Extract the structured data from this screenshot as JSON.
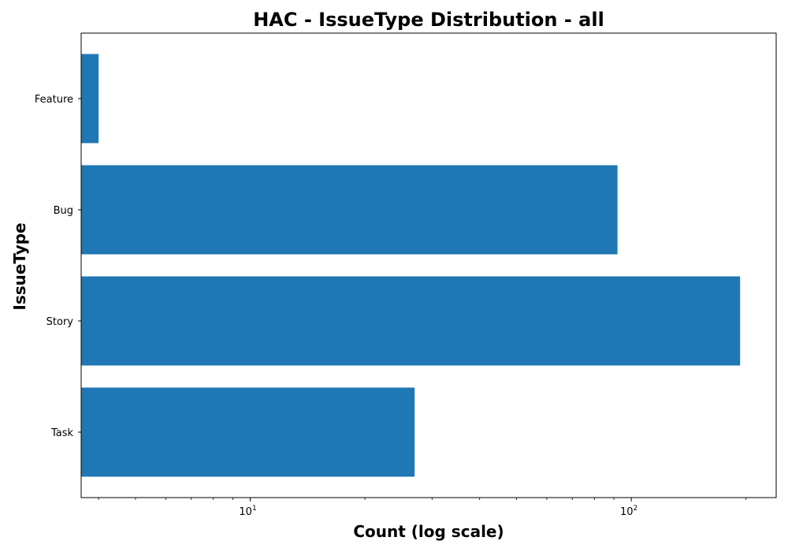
{
  "chart_data": {
    "type": "bar",
    "orientation": "horizontal",
    "title": "HAC - IssueType Distribution - all",
    "xlabel": "Count (log scale)",
    "ylabel": "IssueType",
    "x_scale": "log",
    "xlim": [
      3.6,
      240
    ],
    "x_ticks": [
      {
        "base": "10",
        "exp": "1",
        "value": 10
      },
      {
        "base": "10",
        "exp": "2",
        "value": 100
      }
    ],
    "categories": [
      "Task",
      "Story",
      "Bug",
      "Feature"
    ],
    "values": [
      27,
      193,
      92,
      4
    ],
    "bar_color": "#1f77b4",
    "grid": false,
    "legend": "none"
  }
}
